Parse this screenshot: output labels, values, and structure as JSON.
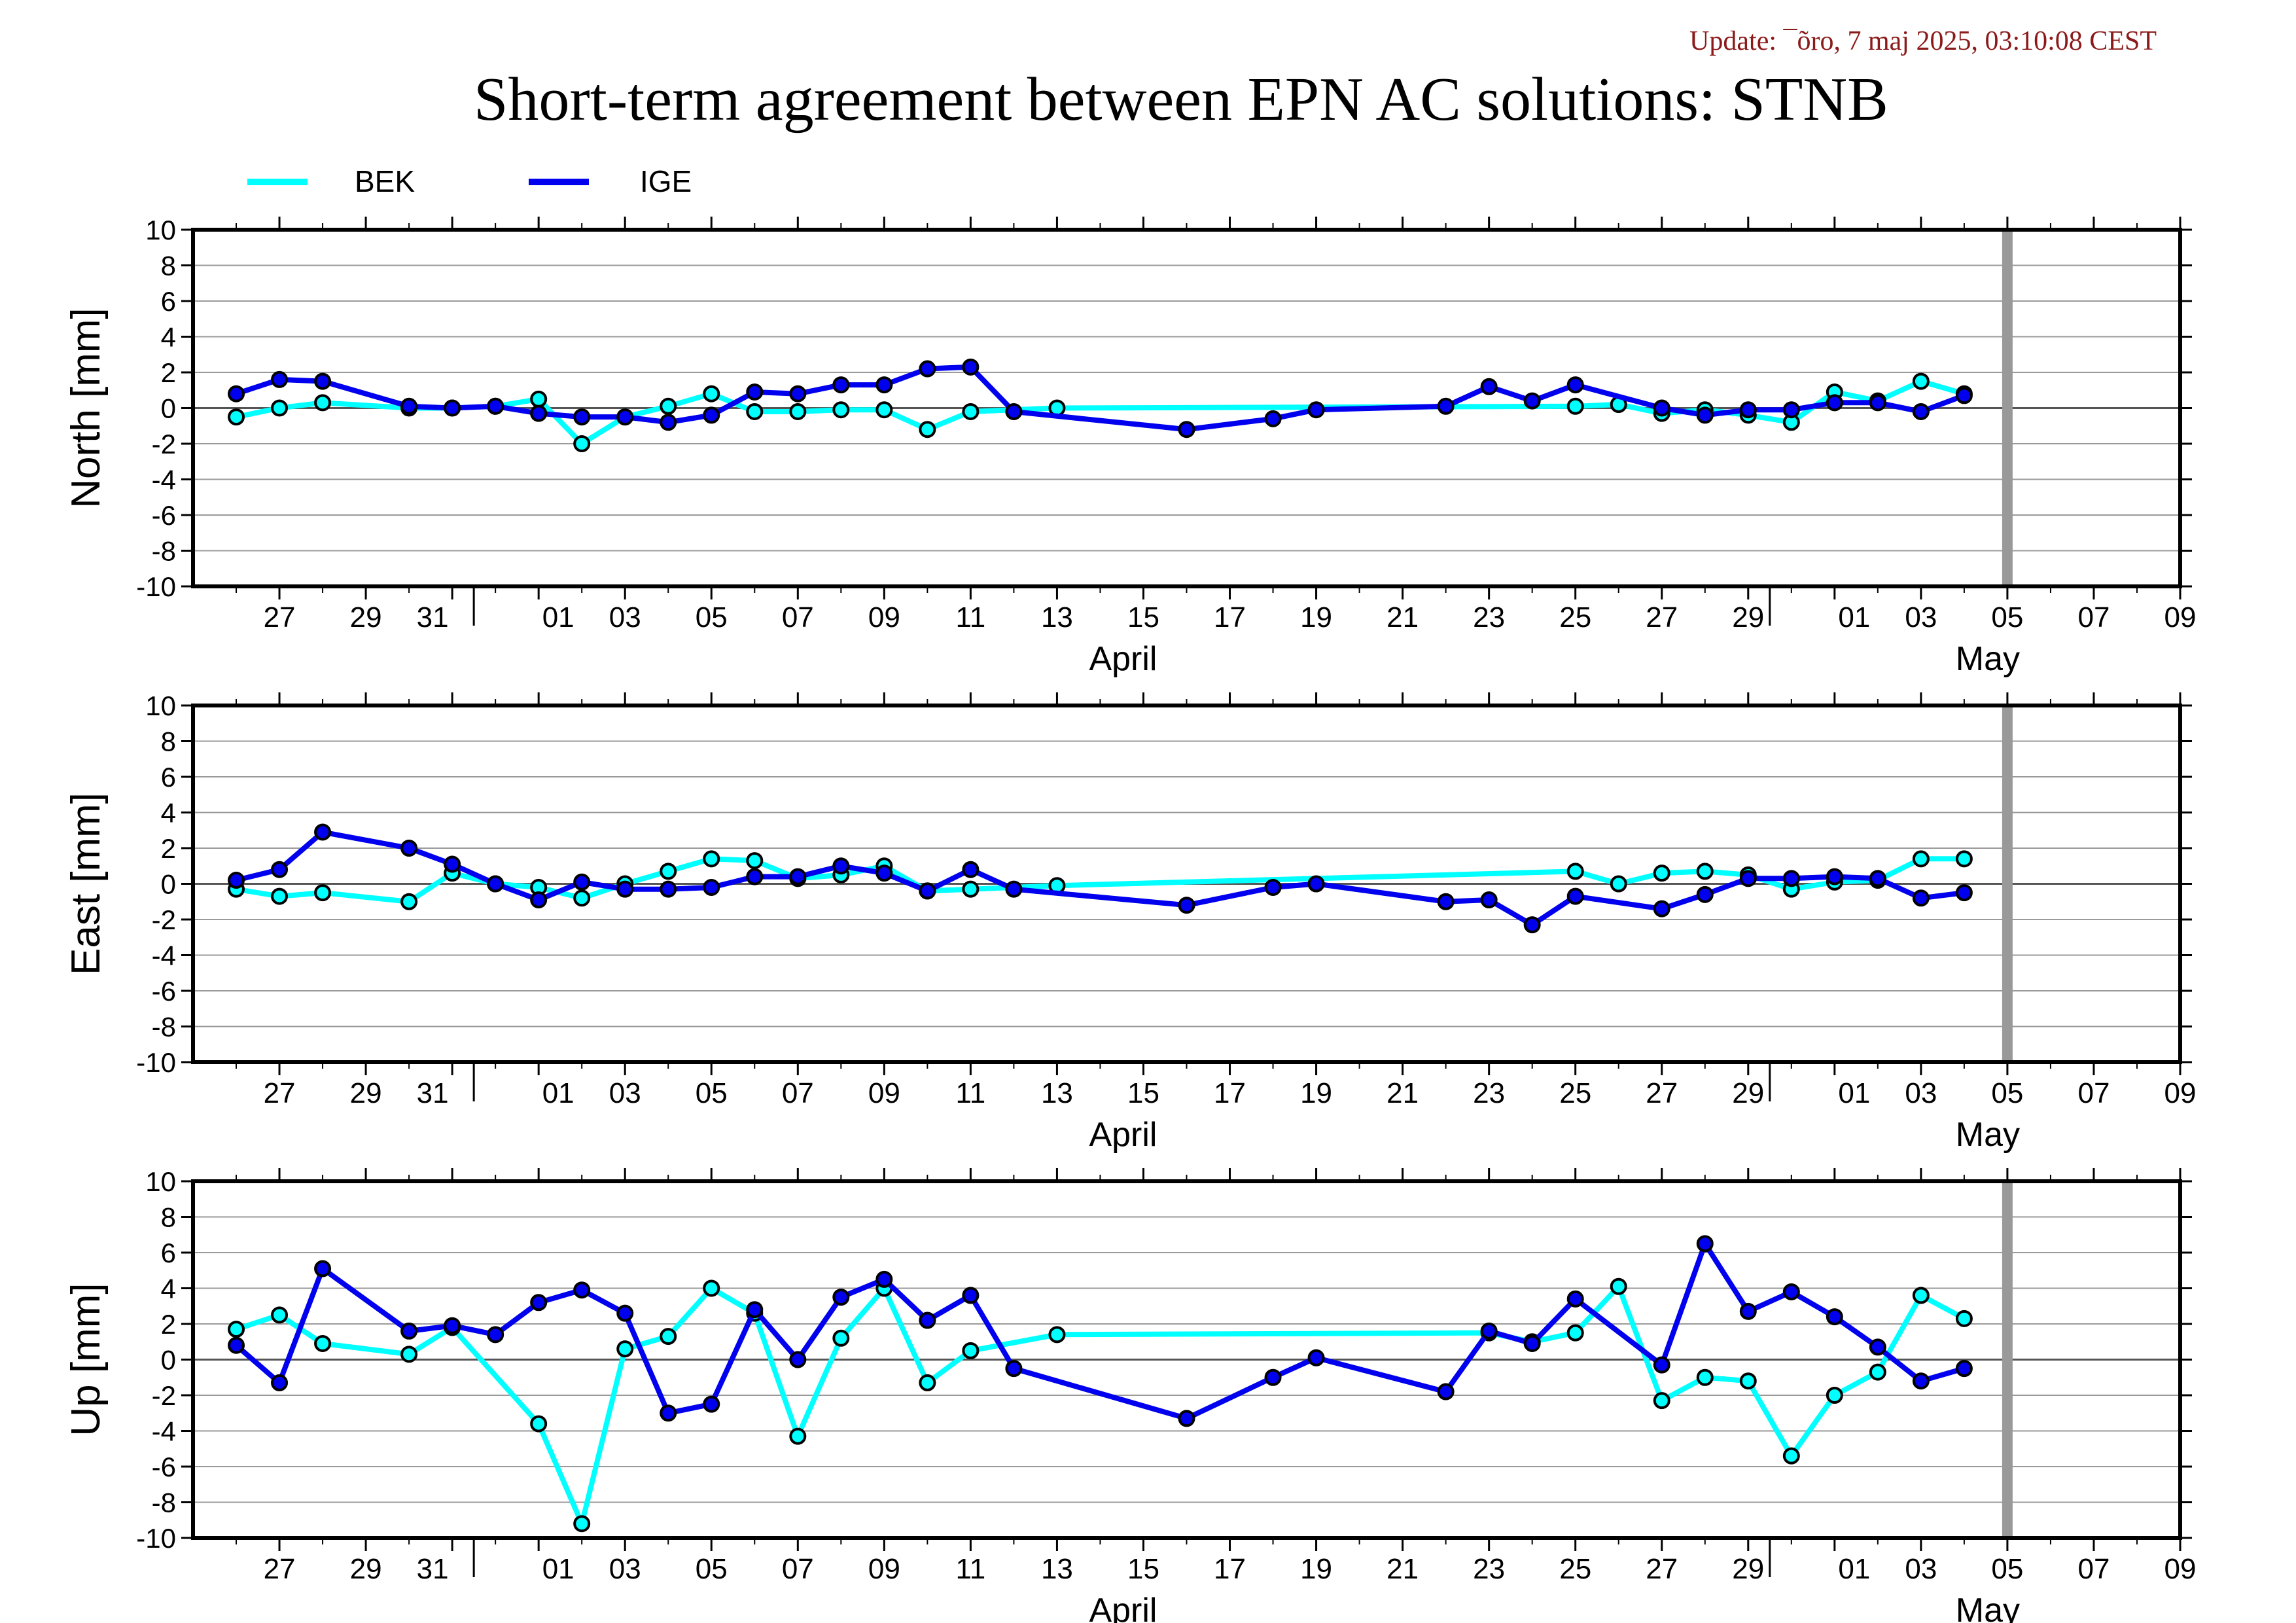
{
  "update_text": "Update: ¯õro, 7 maj 2025, 03:10:08 CEST",
  "title": "Short-term agreement between EPN AC solutions: STNB",
  "colors": {
    "BEK": "#00ffff",
    "IGE": "#0000ee",
    "today_marker": "#999999",
    "update_text": "#8b1a1a"
  },
  "legend": [
    {
      "name": "BEK",
      "color": "#00ffff"
    },
    {
      "name": "IGE",
      "color": "#0000ee"
    }
  ],
  "chart_data": [
    {
      "type": "line",
      "ylabel": "North [mm]",
      "ylim": [
        -10,
        10
      ],
      "yticks": [
        -10,
        -8,
        -6,
        -4,
        -2,
        0,
        2,
        4,
        6,
        8,
        10
      ],
      "xlim": [
        "2025-03-25",
        "2025-05-10"
      ],
      "x_tick_labels": [
        "27",
        "29",
        "31",
        "01",
        "03",
        "05",
        "07",
        "09",
        "11",
        "13",
        "15",
        "17",
        "19",
        "21",
        "23",
        "25",
        "27",
        "29",
        "01",
        "03",
        "05",
        "07",
        "09"
      ],
      "month_labels": [
        "April",
        "May"
      ],
      "grid": "horizontal",
      "today_marker": "2025-05-06",
      "series": [
        {
          "name": "BEK",
          "points": [
            [
              "2025-03-26",
              -0.5
            ],
            [
              "2025-03-27",
              0.0
            ],
            [
              "2025-03-28",
              0.3
            ],
            [
              "2025-03-30",
              0.0
            ],
            [
              "2025-03-31",
              0.0
            ],
            [
              "2025-04-01",
              0.1
            ],
            [
              "2025-04-02",
              0.5
            ],
            [
              "2025-04-03",
              -2.0
            ],
            [
              "2025-04-04",
              -0.5
            ],
            [
              "2025-04-05",
              0.1
            ],
            [
              "2025-04-06",
              0.8
            ],
            [
              "2025-04-07",
              -0.2
            ],
            [
              "2025-04-08",
              -0.2
            ],
            [
              "2025-04-09",
              -0.1
            ],
            [
              "2025-04-10",
              -0.1
            ],
            [
              "2025-04-11",
              -1.2
            ],
            [
              "2025-04-12",
              -0.2
            ],
            [
              "2025-04-14",
              0.0
            ],
            [
              "2025-04-26",
              0.1
            ],
            [
              "2025-04-27",
              0.2
            ],
            [
              "2025-04-28",
              -0.3
            ],
            [
              "2025-04-29",
              -0.1
            ],
            [
              "2025-04-30",
              -0.4
            ],
            [
              "2025-05-01",
              -0.8
            ],
            [
              "2025-05-02",
              0.9
            ],
            [
              "2025-05-03",
              0.4
            ],
            [
              "2025-05-04",
              1.5
            ],
            [
              "2025-05-05",
              0.8
            ]
          ]
        },
        {
          "name": "IGE",
          "points": [
            [
              "2025-03-26",
              0.8
            ],
            [
              "2025-03-27",
              1.6
            ],
            [
              "2025-03-28",
              1.5
            ],
            [
              "2025-03-30",
              0.1
            ],
            [
              "2025-03-31",
              0.0
            ],
            [
              "2025-04-01",
              0.1
            ],
            [
              "2025-04-02",
              -0.3
            ],
            [
              "2025-04-03",
              -0.5
            ],
            [
              "2025-04-04",
              -0.5
            ],
            [
              "2025-04-05",
              -0.8
            ],
            [
              "2025-04-06",
              -0.4
            ],
            [
              "2025-04-07",
              0.9
            ],
            [
              "2025-04-08",
              0.8
            ],
            [
              "2025-04-09",
              1.3
            ],
            [
              "2025-04-10",
              1.3
            ],
            [
              "2025-04-11",
              2.2
            ],
            [
              "2025-04-12",
              2.3
            ],
            [
              "2025-04-13",
              -0.2
            ],
            [
              "2025-04-17",
              -1.2
            ],
            [
              "2025-04-19",
              -0.6
            ],
            [
              "2025-04-20",
              -0.1
            ],
            [
              "2025-04-23",
              0.1
            ],
            [
              "2025-04-24",
              1.2
            ],
            [
              "2025-04-25",
              0.4
            ],
            [
              "2025-04-26",
              1.3
            ],
            [
              "2025-04-28",
              0.0
            ],
            [
              "2025-04-29",
              -0.4
            ],
            [
              "2025-04-30",
              -0.1
            ],
            [
              "2025-05-01",
              -0.1
            ],
            [
              "2025-05-02",
              0.3
            ],
            [
              "2025-05-03",
              0.3
            ],
            [
              "2025-05-04",
              -0.2
            ],
            [
              "2025-05-05",
              0.7
            ]
          ]
        }
      ]
    },
    {
      "type": "line",
      "ylabel": "East [mm]",
      "ylim": [
        -10,
        10
      ],
      "yticks": [
        -10,
        -8,
        -6,
        -4,
        -2,
        0,
        2,
        4,
        6,
        8,
        10
      ],
      "xlim": [
        "2025-03-25",
        "2025-05-10"
      ],
      "x_tick_labels": [
        "27",
        "29",
        "31",
        "01",
        "03",
        "05",
        "07",
        "09",
        "11",
        "13",
        "15",
        "17",
        "19",
        "21",
        "23",
        "25",
        "27",
        "29",
        "01",
        "03",
        "05",
        "07",
        "09"
      ],
      "month_labels": [
        "April",
        "May"
      ],
      "grid": "horizontal",
      "today_marker": "2025-05-06",
      "series": [
        {
          "name": "BEK",
          "points": [
            [
              "2025-03-26",
              -0.3
            ],
            [
              "2025-03-27",
              -0.7
            ],
            [
              "2025-03-28",
              -0.5
            ],
            [
              "2025-03-30",
              -1.0
            ],
            [
              "2025-03-31",
              0.6
            ],
            [
              "2025-04-01",
              0.0
            ],
            [
              "2025-04-02",
              -0.2
            ],
            [
              "2025-04-03",
              -0.8
            ],
            [
              "2025-04-04",
              0.0
            ],
            [
              "2025-04-05",
              0.7
            ],
            [
              "2025-04-06",
              1.4
            ],
            [
              "2025-04-07",
              1.3
            ],
            [
              "2025-04-08",
              0.3
            ],
            [
              "2025-04-09",
              0.5
            ],
            [
              "2025-04-10",
              1.0
            ],
            [
              "2025-04-11",
              -0.4
            ],
            [
              "2025-04-12",
              -0.3
            ],
            [
              "2025-04-14",
              -0.1
            ],
            [
              "2025-04-26",
              0.7
            ],
            [
              "2025-04-27",
              0.0
            ],
            [
              "2025-04-28",
              0.6
            ],
            [
              "2025-04-29",
              0.7
            ],
            [
              "2025-04-30",
              0.5
            ],
            [
              "2025-05-01",
              -0.3
            ],
            [
              "2025-05-02",
              0.1
            ],
            [
              "2025-05-03",
              0.2
            ],
            [
              "2025-05-04",
              1.4
            ],
            [
              "2025-05-05",
              1.4
            ]
          ]
        },
        {
          "name": "IGE",
          "points": [
            [
              "2025-03-26",
              0.2
            ],
            [
              "2025-03-27",
              0.8
            ],
            [
              "2025-03-28",
              2.9
            ],
            [
              "2025-03-30",
              2.0
            ],
            [
              "2025-03-31",
              1.1
            ],
            [
              "2025-04-01",
              0.0
            ],
            [
              "2025-04-02",
              -0.9
            ],
            [
              "2025-04-03",
              0.1
            ],
            [
              "2025-04-04",
              -0.3
            ],
            [
              "2025-04-05",
              -0.3
            ],
            [
              "2025-04-06",
              -0.2
            ],
            [
              "2025-04-07",
              0.4
            ],
            [
              "2025-04-08",
              0.4
            ],
            [
              "2025-04-09",
              1.0
            ],
            [
              "2025-04-10",
              0.6
            ],
            [
              "2025-04-11",
              -0.4
            ],
            [
              "2025-04-12",
              0.8
            ],
            [
              "2025-04-13",
              -0.3
            ],
            [
              "2025-04-17",
              -1.2
            ],
            [
              "2025-04-19",
              -0.2
            ],
            [
              "2025-04-20",
              0.0
            ],
            [
              "2025-04-23",
              -1.0
            ],
            [
              "2025-04-24",
              -0.9
            ],
            [
              "2025-04-25",
              -2.3
            ],
            [
              "2025-04-26",
              -0.7
            ],
            [
              "2025-04-28",
              -1.4
            ],
            [
              "2025-04-29",
              -0.6
            ],
            [
              "2025-04-30",
              0.3
            ],
            [
              "2025-05-01",
              0.3
            ],
            [
              "2025-05-02",
              0.4
            ],
            [
              "2025-05-03",
              0.3
            ],
            [
              "2025-05-04",
              -0.8
            ],
            [
              "2025-05-05",
              -0.5
            ]
          ]
        }
      ]
    },
    {
      "type": "line",
      "ylabel": "Up [mm]",
      "ylim": [
        -10,
        10
      ],
      "yticks": [
        -10,
        -8,
        -6,
        -4,
        -2,
        0,
        2,
        4,
        6,
        8,
        10
      ],
      "xlim": [
        "2025-03-25",
        "2025-05-10"
      ],
      "x_tick_labels": [
        "27",
        "29",
        "31",
        "01",
        "03",
        "05",
        "07",
        "09",
        "11",
        "13",
        "15",
        "17",
        "19",
        "21",
        "23",
        "25",
        "27",
        "29",
        "01",
        "03",
        "05",
        "07",
        "09"
      ],
      "month_labels": [
        "April",
        "May"
      ],
      "grid": "horizontal",
      "today_marker": "2025-05-06",
      "series": [
        {
          "name": "BEK",
          "points": [
            [
              "2025-03-26",
              1.7
            ],
            [
              "2025-03-27",
              2.5
            ],
            [
              "2025-03-28",
              0.9
            ],
            [
              "2025-03-30",
              0.3
            ],
            [
              "2025-03-31",
              1.8
            ],
            [
              "2025-04-02",
              -3.6
            ],
            [
              "2025-04-03",
              -9.2
            ],
            [
              "2025-04-04",
              0.6
            ],
            [
              "2025-04-05",
              1.3
            ],
            [
              "2025-04-06",
              4.0
            ],
            [
              "2025-04-07",
              2.6
            ],
            [
              "2025-04-08",
              -4.3
            ],
            [
              "2025-04-09",
              1.2
            ],
            [
              "2025-04-10",
              4.0
            ],
            [
              "2025-04-11",
              -1.3
            ],
            [
              "2025-04-12",
              0.5
            ],
            [
              "2025-04-14",
              1.4
            ],
            [
              "2025-04-24",
              1.5
            ],
            [
              "2025-04-25",
              1.0
            ],
            [
              "2025-04-26",
              1.5
            ],
            [
              "2025-04-27",
              4.1
            ],
            [
              "2025-04-28",
              -2.3
            ],
            [
              "2025-04-29",
              -1.0
            ],
            [
              "2025-04-30",
              -1.2
            ],
            [
              "2025-05-01",
              -5.4
            ],
            [
              "2025-05-02",
              -2.0
            ],
            [
              "2025-05-03",
              -0.7
            ],
            [
              "2025-05-04",
              3.6
            ],
            [
              "2025-05-05",
              2.3
            ]
          ]
        },
        {
          "name": "IGE",
          "points": [
            [
              "2025-03-26",
              0.8
            ],
            [
              "2025-03-27",
              -1.3
            ],
            [
              "2025-03-28",
              5.1
            ],
            [
              "2025-03-30",
              1.6
            ],
            [
              "2025-03-31",
              1.9
            ],
            [
              "2025-04-01",
              1.4
            ],
            [
              "2025-04-02",
              3.2
            ],
            [
              "2025-04-03",
              3.9
            ],
            [
              "2025-04-04",
              2.6
            ],
            [
              "2025-04-05",
              -3.0
            ],
            [
              "2025-04-06",
              -2.5
            ],
            [
              "2025-04-07",
              2.8
            ],
            [
              "2025-04-08",
              0.0
            ],
            [
              "2025-04-09",
              3.5
            ],
            [
              "2025-04-10",
              4.5
            ],
            [
              "2025-04-11",
              2.2
            ],
            [
              "2025-04-12",
              3.6
            ],
            [
              "2025-04-13",
              -0.5
            ],
            [
              "2025-04-17",
              -3.3
            ],
            [
              "2025-04-19",
              -1.0
            ],
            [
              "2025-04-20",
              0.1
            ],
            [
              "2025-04-23",
              -1.8
            ],
            [
              "2025-04-24",
              1.6
            ],
            [
              "2025-04-25",
              0.9
            ],
            [
              "2025-04-26",
              3.4
            ],
            [
              "2025-04-28",
              -0.3
            ],
            [
              "2025-04-29",
              6.5
            ],
            [
              "2025-04-30",
              2.7
            ],
            [
              "2025-05-01",
              3.8
            ],
            [
              "2025-05-02",
              2.4
            ],
            [
              "2025-05-03",
              0.7
            ],
            [
              "2025-05-04",
              -1.2
            ],
            [
              "2025-05-05",
              -0.5
            ]
          ]
        }
      ]
    }
  ]
}
